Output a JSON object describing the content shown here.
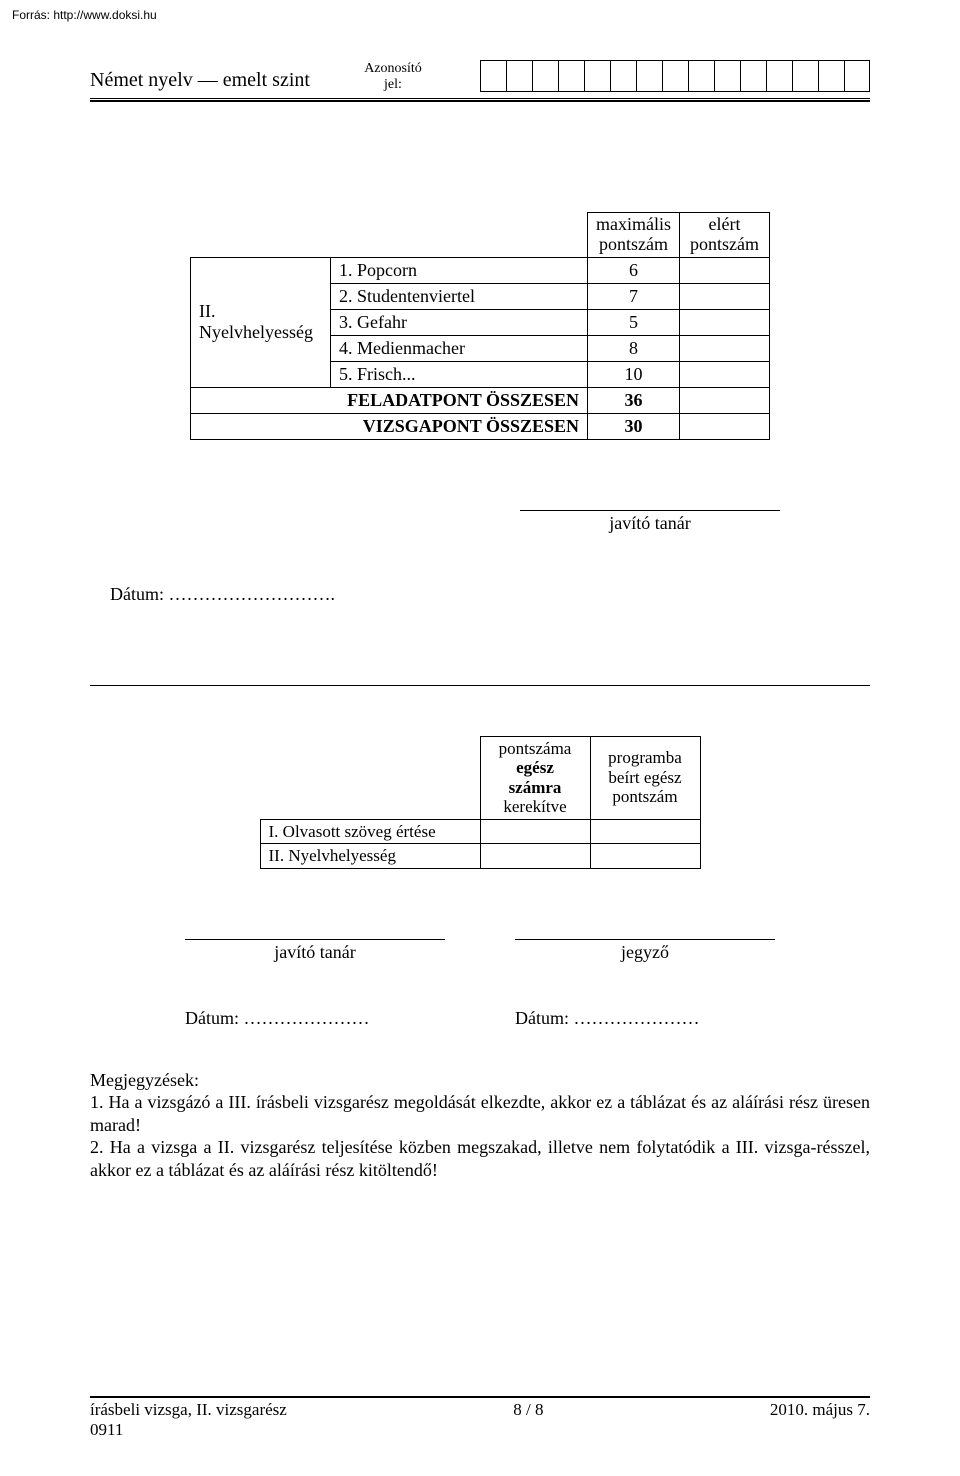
{
  "source_url": "Forrás: http://www.doksi.hu",
  "header": {
    "left": "Német nyelv — emelt szint",
    "center_line1": "Azonosító",
    "center_line2": "jel:",
    "id_box_count": 15
  },
  "score_table": {
    "head_max_line1": "maximális",
    "head_max_line2": "pontszám",
    "head_got_line1": "elért",
    "head_got_line2": "pontszám",
    "section_label": "II. Nyelvhelyesség",
    "rows": [
      {
        "label": "1. Popcorn",
        "max": "6"
      },
      {
        "label": "2. Studentenviertel",
        "max": "7"
      },
      {
        "label": "3. Gefahr",
        "max": "5"
      },
      {
        "label": "4. Medienmacher",
        "max": "8"
      },
      {
        "label": "5. Frisch...",
        "max": "10"
      }
    ],
    "total1_label": "FELADATPONT ÖSSZESEN",
    "total1_value": "36",
    "total2_label": "VIZSGAPONT ÖSSZESEN",
    "total2_value": "30"
  },
  "signature1": "javító tanár",
  "date_label": "Dátum: ",
  "dotted": "………………………",
  "date_period": ".",
  "mini_table": {
    "col1_l1": "pontszáma",
    "col1_l2": "egész",
    "col1_l3": "számra",
    "col1_l4": "kerekítve",
    "col2_l1": "programba",
    "col2_l2": "beírt egész",
    "col2_l3": "pontszám",
    "row1": "I. Olvasott szöveg értése",
    "row2": "II. Nyelvhelyesség"
  },
  "signature2a": "javító tanár",
  "signature2b": "jegyző",
  "date2a": "Dátum: …………………",
  "date2b": "Dátum: …………………",
  "notes_title": "Megjegyzések:",
  "notes_line1": "1. Ha a vizsgázó a III. írásbeli vizsgarész megoldását elkezdte, akkor ez a táblázat és az aláírási rész üresen marad!",
  "notes_line2": "2. Ha a vizsga a II. vizsgarész teljesítése közben megszakad, illetve nem folytatódik a III. vizsga-résszel, akkor ez a táblázat és az aláírási rész kitöltendő!",
  "footer": {
    "left_l1": "írásbeli vizsga, II. vizsgarész",
    "left_l2": "0911",
    "center": "8 / 8",
    "right": "2010. május 7."
  }
}
